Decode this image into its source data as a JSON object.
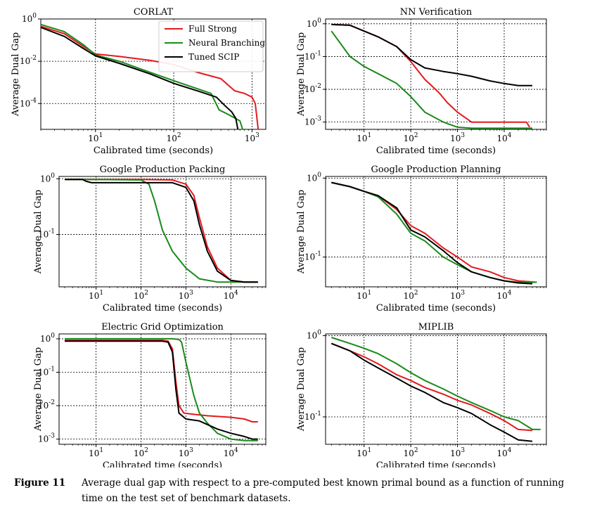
{
  "colors": {
    "red": "#e41a1c",
    "green": "#1a8a1a",
    "black": "#000000"
  },
  "caption": {
    "label": "Figure 11",
    "text": "Average dual gap with respect to a pre-computed best known primal bound as a function of running time on the test set of benchmark datasets."
  },
  "chart_data": [
    {
      "type": "line",
      "title": "CORLAT",
      "xlabel": "Calibrated time (seconds)",
      "ylabel": "Average Dual Gap",
      "xscale": "log",
      "yscale": "log",
      "xlim": [
        2,
        1500
      ],
      "ylim": [
        6e-06,
        1
      ],
      "xticks": [
        10,
        100,
        1000
      ],
      "xtick_labels": [
        "10^1",
        "10^2",
        "10^3"
      ],
      "yticks": [
        0.0001,
        0.01,
        1
      ],
      "ytick_labels": [
        "10^-4",
        "10^-2",
        "10^0"
      ],
      "legend": {
        "position": "top-right",
        "entries": [
          "Full Strong",
          "Neural Branching",
          "Tuned SCIP"
        ]
      },
      "series": [
        {
          "name": "Full Strong",
          "color": "red",
          "x": [
            2,
            4,
            7,
            10,
            20,
            50,
            100,
            200,
            400,
            600,
            800,
            1000,
            1100,
            1200
          ],
          "y": [
            0.45,
            0.2,
            0.05,
            0.022,
            0.017,
            0.011,
            0.007,
            0.003,
            0.0015,
            0.0004,
            0.0003,
            0.0002,
            0.0001,
            6e-06
          ]
        },
        {
          "name": "Neural Branching",
          "color": "green",
          "x": [
            2,
            4,
            7,
            10,
            20,
            50,
            100,
            200,
            300,
            380,
            500,
            700,
            760
          ],
          "y": [
            0.55,
            0.25,
            0.06,
            0.02,
            0.01,
            0.003,
            0.0012,
            0.0005,
            0.0003,
            5e-05,
            3e-05,
            1.5e-05,
            6e-06
          ]
        },
        {
          "name": "Tuned SCIP",
          "color": "black",
          "x": [
            2,
            4,
            7,
            10,
            20,
            50,
            100,
            200,
            350,
            450,
            550,
            620,
            660
          ],
          "y": [
            0.4,
            0.15,
            0.04,
            0.018,
            0.008,
            0.0025,
            0.0009,
            0.0004,
            0.0002,
            8e-05,
            4e-05,
            2e-05,
            6e-06
          ]
        }
      ]
    },
    {
      "type": "line",
      "title": "NN Verification",
      "xlabel": "Calibrated time (seconds)",
      "ylabel": "Average Dual Gap",
      "xscale": "log",
      "yscale": "log",
      "xlim": [
        1.5,
        80000
      ],
      "ylim": [
        0.0006,
        1.4
      ],
      "xticks": [
        10,
        100,
        1000,
        10000
      ],
      "xtick_labels": [
        "10^1",
        "10^2",
        "10^3",
        "10^4"
      ],
      "yticks": [
        0.001,
        0.01,
        0.1,
        1
      ],
      "ytick_labels": [
        "10^-3",
        "10^-2",
        "10^-1",
        "10^0"
      ],
      "series": [
        {
          "name": "Full Strong",
          "color": "red",
          "x": [
            2,
            5,
            10,
            20,
            50,
            100,
            200,
            400,
            600,
            1000,
            2000,
            5000,
            10000,
            30000,
            35000
          ],
          "y": [
            0.95,
            0.9,
            0.6,
            0.4,
            0.2,
            0.07,
            0.02,
            0.008,
            0.004,
            0.002,
            0.001,
            0.001,
            0.001,
            0.001,
            0.0007
          ]
        },
        {
          "name": "Neural Branching",
          "color": "green",
          "x": [
            2,
            5,
            10,
            20,
            50,
            100,
            200,
            500,
            1000,
            2000,
            5000,
            10000,
            40000
          ],
          "y": [
            0.6,
            0.1,
            0.05,
            0.03,
            0.015,
            0.006,
            0.002,
            0.001,
            0.0007,
            0.00065,
            0.00065,
            0.00065,
            0.00065
          ]
        },
        {
          "name": "Tuned SCIP",
          "color": "black",
          "x": [
            2,
            5,
            10,
            20,
            50,
            100,
            200,
            500,
            1000,
            2000,
            5000,
            10000,
            20000,
            40000
          ],
          "y": [
            0.95,
            0.9,
            0.6,
            0.4,
            0.2,
            0.08,
            0.045,
            0.035,
            0.03,
            0.025,
            0.018,
            0.015,
            0.013,
            0.013
          ]
        }
      ]
    },
    {
      "type": "line",
      "title": "Google Production Packing",
      "xlabel": "Calibrated time (seconds)",
      "ylabel": "Average Dual Gap",
      "xscale": "log",
      "yscale": "log",
      "xlim": [
        1.5,
        60000
      ],
      "ylim": [
        0.0115,
        1.1
      ],
      "xticks": [
        10,
        100,
        1000,
        10000
      ],
      "xtick_labels": [
        "10^1",
        "10^2",
        "10^3",
        "10^4"
      ],
      "yticks": [
        0.1,
        1
      ],
      "ytick_labels": [
        "10^-1",
        "10^0"
      ],
      "series": [
        {
          "name": "Full Strong",
          "color": "red",
          "x": [
            2,
            5,
            10,
            100,
            500,
            1000,
            1500,
            2000,
            3000,
            5000,
            10000,
            20000,
            40000
          ],
          "y": [
            0.97,
            0.97,
            0.97,
            0.97,
            0.95,
            0.8,
            0.5,
            0.2,
            0.06,
            0.025,
            0.015,
            0.014,
            0.014
          ]
        },
        {
          "name": "Neural Branching",
          "color": "green",
          "x": [
            2,
            5,
            10,
            100,
            150,
            200,
            300,
            500,
            1000,
            2000,
            5000,
            10000,
            40000
          ],
          "y": [
            0.97,
            0.97,
            0.97,
            0.95,
            0.8,
            0.4,
            0.12,
            0.05,
            0.025,
            0.016,
            0.014,
            0.014,
            0.014
          ]
        },
        {
          "name": "Tuned SCIP",
          "color": "black",
          "x": [
            2,
            5,
            6,
            8,
            100,
            500,
            1000,
            1500,
            2000,
            3000,
            5000,
            10000,
            20000,
            40000
          ],
          "y": [
            0.97,
            0.97,
            0.9,
            0.85,
            0.85,
            0.85,
            0.7,
            0.4,
            0.15,
            0.05,
            0.022,
            0.015,
            0.014,
            0.014
          ]
        }
      ]
    },
    {
      "type": "line",
      "title": "Google Production Planning",
      "xlabel": "Calibrated time (seconds)",
      "ylabel": "Average Dual Gap",
      "xscale": "log",
      "yscale": "log",
      "xlim": [
        1.5,
        80000
      ],
      "ylim": [
        0.042,
        1.05
      ],
      "xticks": [
        10,
        100,
        1000,
        10000
      ],
      "xtick_labels": [
        "10^1",
        "10^2",
        "10^3",
        "10^4"
      ],
      "yticks": [
        0.1,
        1
      ],
      "ytick_labels": [
        "10^-1",
        "10^0"
      ],
      "series": [
        {
          "name": "Full Strong",
          "color": "red",
          "x": [
            2,
            5,
            10,
            20,
            50,
            100,
            200,
            500,
            1000,
            2000,
            5000,
            10000,
            20000,
            50000
          ],
          "y": [
            0.88,
            0.78,
            0.68,
            0.6,
            0.4,
            0.25,
            0.2,
            0.13,
            0.1,
            0.075,
            0.065,
            0.055,
            0.05,
            0.048
          ]
        },
        {
          "name": "Neural Branching",
          "color": "green",
          "x": [
            2,
            5,
            10,
            20,
            50,
            100,
            200,
            500,
            1000,
            2000,
            5000,
            10000,
            20000,
            50000
          ],
          "y": [
            0.88,
            0.78,
            0.68,
            0.58,
            0.35,
            0.2,
            0.16,
            0.1,
            0.08,
            0.065,
            0.055,
            0.05,
            0.048,
            0.048
          ]
        },
        {
          "name": "Tuned SCIP",
          "color": "black",
          "x": [
            2,
            5,
            10,
            20,
            50,
            100,
            200,
            500,
            1000,
            2000,
            5000,
            10000,
            20000,
            40000
          ],
          "y": [
            0.88,
            0.78,
            0.68,
            0.6,
            0.42,
            0.22,
            0.18,
            0.12,
            0.085,
            0.065,
            0.055,
            0.05,
            0.047,
            0.046
          ]
        }
      ]
    },
    {
      "type": "line",
      "title": "Electric Grid Optimization",
      "xlabel": "Calibrated time (seconds)",
      "ylabel": "Average Dual Gap",
      "xscale": "log",
      "yscale": "log",
      "xlim": [
        1.5,
        60000
      ],
      "ylim": [
        0.0007,
        1.4
      ],
      "xticks": [
        10,
        100,
        1000,
        10000
      ],
      "xtick_labels": [
        "10^1",
        "10^2",
        "10^3",
        "10^4"
      ],
      "yticks": [
        0.001,
        0.01,
        0.1,
        1
      ],
      "ytick_labels": [
        "10^-3",
        "10^-2",
        "10^-1",
        "10^0"
      ],
      "series": [
        {
          "name": "Full Strong",
          "color": "red",
          "x": [
            2,
            10,
            100,
            300,
            400,
            500,
            600,
            700,
            900,
            1500,
            3000,
            10000,
            20000,
            30000,
            40000
          ],
          "y": [
            0.9,
            0.9,
            0.9,
            0.9,
            0.85,
            0.5,
            0.05,
            0.01,
            0.006,
            0.0055,
            0.005,
            0.0045,
            0.004,
            0.0033,
            0.0033
          ]
        },
        {
          "name": "Neural Branching",
          "color": "green",
          "x": [
            2,
            10,
            100,
            500,
            700,
            800,
            1000,
            1500,
            2000,
            3000,
            5000,
            10000,
            20000,
            40000
          ],
          "y": [
            1,
            1,
            1,
            1,
            0.95,
            0.8,
            0.2,
            0.02,
            0.006,
            0.003,
            0.0015,
            0.001,
            0.0009,
            0.0009
          ]
        },
        {
          "name": "Tuned SCIP",
          "color": "black",
          "x": [
            2,
            10,
            100,
            300,
            400,
            500,
            600,
            700,
            1000,
            2000,
            5000,
            10000,
            20000,
            30000,
            40000
          ],
          "y": [
            0.85,
            0.85,
            0.85,
            0.85,
            0.8,
            0.4,
            0.03,
            0.006,
            0.004,
            0.0035,
            0.002,
            0.0015,
            0.0012,
            0.001,
            0.001
          ]
        }
      ]
    },
    {
      "type": "line",
      "title": "MIPLIB",
      "xlabel": "Calibrated time (seconds)",
      "ylabel": "Average Dual Gap",
      "xscale": "log",
      "yscale": "log",
      "xlim": [
        1.5,
        80000
      ],
      "ylim": [
        0.046,
        1.05
      ],
      "xticks": [
        10,
        100,
        1000,
        10000
      ],
      "xtick_labels": [
        "10^1",
        "10^2",
        "10^3",
        "10^4"
      ],
      "yticks": [
        0.1,
        1
      ],
      "ytick_labels": [
        "10^-1",
        "10^0"
      ],
      "series": [
        {
          "name": "Full Strong",
          "color": "red",
          "x": [
            2,
            5,
            10,
            20,
            50,
            100,
            200,
            500,
            1000,
            2000,
            5000,
            10000,
            20000,
            40000
          ],
          "y": [
            0.8,
            0.65,
            0.55,
            0.45,
            0.33,
            0.28,
            0.23,
            0.19,
            0.16,
            0.14,
            0.11,
            0.09,
            0.07,
            0.068
          ]
        },
        {
          "name": "Neural Branching",
          "color": "green",
          "x": [
            2,
            5,
            10,
            20,
            50,
            100,
            200,
            500,
            1000,
            2000,
            5000,
            10000,
            20000,
            40000,
            60000
          ],
          "y": [
            0.95,
            0.8,
            0.7,
            0.6,
            0.45,
            0.35,
            0.28,
            0.22,
            0.18,
            0.15,
            0.12,
            0.1,
            0.09,
            0.07,
            0.07
          ]
        },
        {
          "name": "Tuned SCIP",
          "color": "black",
          "x": [
            2,
            5,
            10,
            20,
            50,
            100,
            200,
            500,
            1000,
            2000,
            5000,
            10000,
            20000,
            40000
          ],
          "y": [
            0.8,
            0.65,
            0.5,
            0.4,
            0.3,
            0.24,
            0.2,
            0.15,
            0.13,
            0.11,
            0.08,
            0.065,
            0.052,
            0.05
          ]
        }
      ]
    }
  ]
}
